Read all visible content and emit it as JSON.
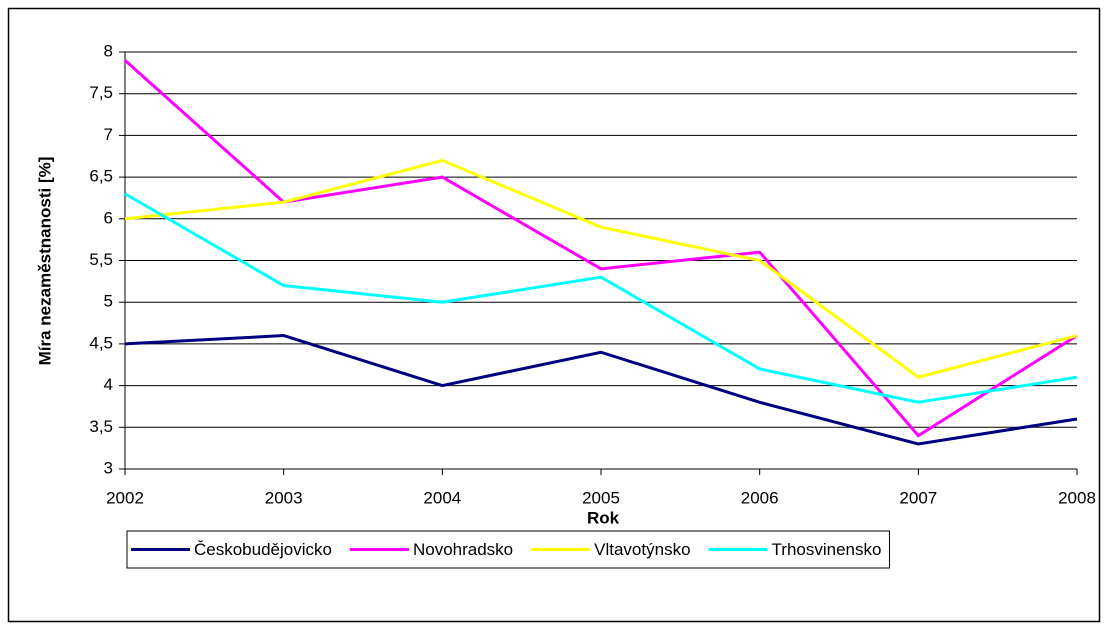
{
  "chart_data": {
    "type": "line",
    "y_label": "Míra nezaměstnanosti [%]",
    "x_label": "Rok",
    "categories": [
      "2002",
      "2003",
      "2004",
      "2005",
      "2006",
      "2007",
      "2008"
    ],
    "series": [
      {
        "name": "Českobudějovicko",
        "color": "#000080",
        "values": [
          4.5,
          4.6,
          4.0,
          4.4,
          3.8,
          3.3,
          3.6
        ]
      },
      {
        "name": "Novohradsko",
        "color": "#ff00ff",
        "values": [
          7.9,
          6.2,
          6.5,
          5.4,
          5.6,
          3.4,
          4.6
        ]
      },
      {
        "name": "Vltavotýnsko",
        "color": "#ffff00",
        "values": [
          6.0,
          6.2,
          6.7,
          5.9,
          5.5,
          4.1,
          4.6
        ]
      },
      {
        "name": "Trhosvinensko",
        "color": "#00ffff",
        "values": [
          6.3,
          5.2,
          5.0,
          5.3,
          4.2,
          3.8,
          4.1
        ]
      }
    ],
    "ylim": [
      3,
      8
    ],
    "yticks": [
      3,
      {
        "value": 3.5,
        "label": "3,5"
      },
      4,
      {
        "value": 4.5,
        "label": "4,5"
      },
      5,
      {
        "value": 5.5,
        "label": "5,5"
      },
      6,
      {
        "value": 6.5,
        "label": "6,5"
      },
      7,
      {
        "value": 7.5,
        "label": "7,5"
      },
      8
    ],
    "grid": true,
    "legend": "bottom"
  }
}
